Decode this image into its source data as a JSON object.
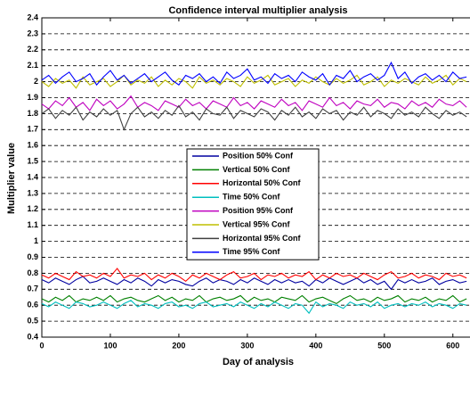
{
  "chart_data": {
    "type": "line",
    "title": "Confidence interval multiplier analysis",
    "x_label": "Day of analysis",
    "y_label": "Multiplier value",
    "xlim": [
      0,
      625
    ],
    "ylim": [
      0.4,
      2.4
    ],
    "xticks": [
      0,
      100,
      200,
      300,
      400,
      500,
      600
    ],
    "yticks": [
      0.4,
      0.5,
      0.6,
      0.7,
      0.8,
      0.9,
      1,
      1.1,
      1.2,
      1.3,
      1.4,
      1.5,
      1.6,
      1.7,
      1.8,
      1.9,
      2,
      2.1,
      2.2,
      2.3,
      2.4
    ],
    "grid": true,
    "legend": "center",
    "x": [
      0,
      10,
      20,
      30,
      40,
      50,
      60,
      70,
      80,
      90,
      100,
      110,
      120,
      130,
      140,
      150,
      160,
      170,
      180,
      190,
      200,
      210,
      220,
      230,
      240,
      250,
      260,
      270,
      280,
      290,
      300,
      310,
      320,
      330,
      340,
      350,
      360,
      370,
      380,
      390,
      400,
      410,
      420,
      430,
      440,
      450,
      460,
      470,
      480,
      490,
      500,
      510,
      520,
      530,
      540,
      550,
      560,
      570,
      580,
      590,
      600,
      610,
      620
    ],
    "series": [
      {
        "name": "Position 50% Conf",
        "color": "#0000a0",
        "values": [
          0.76,
          0.74,
          0.77,
          0.75,
          0.73,
          0.76,
          0.78,
          0.74,
          0.75,
          0.77,
          0.75,
          0.73,
          0.76,
          0.74,
          0.77,
          0.75,
          0.72,
          0.76,
          0.74,
          0.76,
          0.75,
          0.73,
          0.72,
          0.75,
          0.77,
          0.74,
          0.76,
          0.75,
          0.73,
          0.76,
          0.74,
          0.77,
          0.75,
          0.73,
          0.76,
          0.74,
          0.76,
          0.74,
          0.75,
          0.72,
          0.76,
          0.74,
          0.77,
          0.75,
          0.73,
          0.75,
          0.77,
          0.74,
          0.76,
          0.73,
          0.75,
          0.7,
          0.76,
          0.74,
          0.76,
          0.74,
          0.75,
          0.77,
          0.73,
          0.75,
          0.76,
          0.74,
          0.75
        ]
      },
      {
        "name": "Vertical 50% Conf",
        "color": "#008000",
        "values": [
          0.64,
          0.62,
          0.65,
          0.63,
          0.66,
          0.62,
          0.64,
          0.63,
          0.65,
          0.63,
          0.66,
          0.62,
          0.64,
          0.65,
          0.63,
          0.62,
          0.64,
          0.66,
          0.63,
          0.65,
          0.62,
          0.64,
          0.63,
          0.66,
          0.62,
          0.64,
          0.65,
          0.63,
          0.64,
          0.66,
          0.62,
          0.65,
          0.63,
          0.64,
          0.62,
          0.65,
          0.64,
          0.63,
          0.66,
          0.62,
          0.64,
          0.65,
          0.63,
          0.61,
          0.64,
          0.66,
          0.63,
          0.64,
          0.62,
          0.65,
          0.63,
          0.64,
          0.66,
          0.62,
          0.64,
          0.63,
          0.65,
          0.62,
          0.64,
          0.63,
          0.66,
          0.62,
          0.64
        ]
      },
      {
        "name": "Horizontal 50% Conf",
        "color": "#ff0000",
        "values": [
          0.79,
          0.77,
          0.8,
          0.78,
          0.76,
          0.81,
          0.78,
          0.79,
          0.77,
          0.8,
          0.78,
          0.83,
          0.77,
          0.79,
          0.78,
          0.8,
          0.76,
          0.79,
          0.77,
          0.8,
          0.78,
          0.75,
          0.79,
          0.77,
          0.8,
          0.78,
          0.76,
          0.79,
          0.81,
          0.77,
          0.78,
          0.8,
          0.76,
          0.79,
          0.78,
          0.8,
          0.77,
          0.79,
          0.78,
          0.81,
          0.76,
          0.79,
          0.77,
          0.8,
          0.78,
          0.79,
          0.77,
          0.8,
          0.78,
          0.76,
          0.79,
          0.81,
          0.77,
          0.78,
          0.8,
          0.77,
          0.79,
          0.78,
          0.76,
          0.8,
          0.78,
          0.79,
          0.77
        ]
      },
      {
        "name": "Time 50% Conf",
        "color": "#00bfbf",
        "values": [
          0.61,
          0.59,
          0.62,
          0.6,
          0.58,
          0.62,
          0.61,
          0.59,
          0.6,
          0.62,
          0.6,
          0.58,
          0.61,
          0.63,
          0.59,
          0.61,
          0.6,
          0.58,
          0.61,
          0.62,
          0.59,
          0.6,
          0.58,
          0.61,
          0.62,
          0.59,
          0.6,
          0.61,
          0.59,
          0.62,
          0.6,
          0.58,
          0.61,
          0.59,
          0.62,
          0.6,
          0.58,
          0.61,
          0.6,
          0.55,
          0.62,
          0.59,
          0.61,
          0.6,
          0.58,
          0.62,
          0.6,
          0.61,
          0.59,
          0.62,
          0.58,
          0.6,
          0.61,
          0.59,
          0.61,
          0.6,
          0.62,
          0.59,
          0.61,
          0.6,
          0.58,
          0.61,
          0.6
        ]
      },
      {
        "name": "Position 95% Conf",
        "color": "#bf00bf",
        "values": [
          1.86,
          1.83,
          1.88,
          1.85,
          1.9,
          1.84,
          1.87,
          1.82,
          1.89,
          1.85,
          1.88,
          1.83,
          1.86,
          1.91,
          1.84,
          1.87,
          1.85,
          1.82,
          1.88,
          1.86,
          1.84,
          1.89,
          1.85,
          1.87,
          1.83,
          1.88,
          1.86,
          1.84,
          1.9,
          1.85,
          1.87,
          1.83,
          1.88,
          1.86,
          1.84,
          1.89,
          1.85,
          1.87,
          1.82,
          1.88,
          1.86,
          1.84,
          1.9,
          1.85,
          1.87,
          1.83,
          1.88,
          1.86,
          1.85,
          1.89,
          1.84,
          1.87,
          1.86,
          1.83,
          1.88,
          1.85,
          1.87,
          1.84,
          1.89,
          1.86,
          1.85,
          1.88,
          1.84
        ]
      },
      {
        "name": "Vertical 95% Conf",
        "color": "#bfbf00",
        "values": [
          2.0,
          1.97,
          2.02,
          1.99,
          2.01,
          1.96,
          2.03,
          1.98,
          2.0,
          2.02,
          1.97,
          2.0,
          2.04,
          1.98,
          2.01,
          1.99,
          2.03,
          1.97,
          2.01,
          1.98,
          2.02,
          2.0,
          1.96,
          2.03,
          1.99,
          2.01,
          1.98,
          2.02,
          2.0,
          1.97,
          2.03,
          1.99,
          2.01,
          2.04,
          1.98,
          2.0,
          2.02,
          1.97,
          2.01,
          1.99,
          2.03,
          2.0,
          1.98,
          2.02,
          1.99,
          2.01,
          2.04,
          1.98,
          2.0,
          2.03,
          1.97,
          2.01,
          1.99,
          2.02,
          2.0,
          1.98,
          2.03,
          1.99,
          2.01,
          2.04,
          1.98,
          2.02,
          2.0
        ]
      },
      {
        "name": "Horizontal 95% Conf",
        "color": "#404040",
        "values": [
          1.8,
          1.83,
          1.77,
          1.82,
          1.79,
          1.84,
          1.76,
          1.81,
          1.78,
          1.83,
          1.79,
          1.82,
          1.7,
          1.8,
          1.84,
          1.78,
          1.81,
          1.77,
          1.82,
          1.79,
          1.85,
          1.78,
          1.81,
          1.76,
          1.83,
          1.8,
          1.79,
          1.84,
          1.77,
          1.82,
          1.8,
          1.78,
          1.83,
          1.81,
          1.76,
          1.82,
          1.79,
          1.84,
          1.78,
          1.81,
          1.77,
          1.83,
          1.8,
          1.82,
          1.76,
          1.81,
          1.79,
          1.84,
          1.78,
          1.82,
          1.8,
          1.77,
          1.83,
          1.79,
          1.81,
          1.78,
          1.84,
          1.8,
          1.77,
          1.82,
          1.79,
          1.81,
          1.78
        ]
      },
      {
        "name": "Time 95% Conf",
        "color": "#0000ff",
        "values": [
          2.01,
          2.04,
          1.99,
          2.03,
          2.06,
          2.0,
          2.02,
          2.05,
          1.98,
          2.03,
          2.07,
          2.01,
          2.04,
          1.99,
          2.02,
          2.05,
          2.0,
          2.03,
          2.06,
          2.01,
          1.98,
          2.04,
          2.02,
          2.05,
          2.0,
          2.03,
          1.99,
          2.06,
          2.02,
          2.04,
          2.08,
          2.01,
          2.03,
          1.99,
          2.05,
          2.02,
          2.04,
          2.0,
          2.06,
          2.03,
          2.01,
          2.05,
          1.98,
          2.04,
          2.02,
          2.07,
          2.0,
          2.03,
          2.05,
          2.01,
          2.04,
          2.12,
          2.02,
          2.06,
          1.99,
          2.03,
          2.05,
          2.01,
          2.04,
          2.0,
          2.06,
          2.02,
          2.03
        ]
      }
    ]
  }
}
